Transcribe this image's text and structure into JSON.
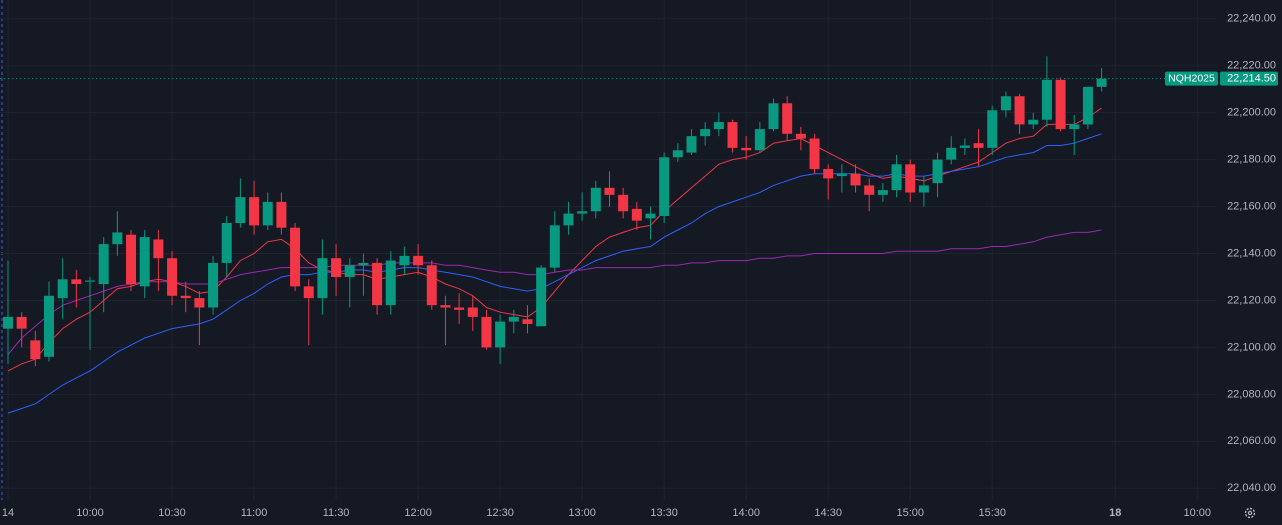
{
  "chart_data": {
    "type": "candlestick",
    "symbol": "NQH2025",
    "last_price": {
      "value": 22214.5,
      "label": "22,214.50"
    },
    "up_color": "#089981",
    "down_color": "#f23645",
    "x": [
      "14",
      null,
      null,
      null,
      null,
      null,
      "10:00",
      null,
      null,
      null,
      null,
      null,
      "10:30",
      null,
      null,
      null,
      null,
      null,
      "11:00",
      null,
      null,
      null,
      null,
      null,
      "11:30",
      null,
      null,
      null,
      null,
      null,
      "12:00",
      null,
      null,
      null,
      null,
      null,
      "12:30",
      null,
      null,
      null,
      null,
      null,
      "13:00",
      null,
      null,
      null,
      null,
      null,
      "13:30",
      null,
      null,
      null,
      null,
      null,
      "14:00",
      null,
      null,
      null,
      null,
      null,
      "14:30",
      null,
      null,
      null,
      null,
      null,
      "15:00",
      null,
      null,
      null,
      null,
      null,
      "15:30",
      null,
      null,
      null,
      null,
      null,
      null,
      null,
      null,
      "18",
      null,
      null,
      null,
      null,
      null,
      "10:00"
    ],
    "open": [
      22108,
      22113,
      22103,
      22096,
      22121,
      22129,
      22128,
      22127,
      22144,
      22148,
      22126,
      22146,
      22138,
      22122,
      22121,
      22117,
      22136,
      22153,
      22164,
      22152,
      22162,
      22151,
      22126,
      22121,
      22138,
      22130,
      22135,
      22136,
      22118,
      22135,
      22139,
      22135,
      22118,
      22117,
      22117,
      22113,
      22100,
      22111,
      22112,
      22109,
      22134,
      22152,
      22157,
      22158,
      22168,
      22165,
      22159,
      22155,
      22156,
      22181,
      22183,
      22190,
      22193,
      22196,
      22185,
      22184,
      22193,
      22204,
      22191,
      22189,
      22176,
      22173,
      22174,
      22169,
      22165,
      22167,
      22178,
      22166,
      22170,
      22180,
      22185,
      22187,
      22185,
      22201,
      22207,
      22195,
      22197,
      22214,
      22193,
      22195,
      22211,
      null,
      null,
      null,
      null,
      null,
      null,
      null
    ],
    "high": [
      22137,
      22115,
      22107,
      22128,
      22138,
      22133,
      22130,
      22147,
      22158,
      22150,
      22150,
      22150,
      22141,
      22128,
      22124,
      22139,
      22156,
      22172,
      22171,
      22166,
      22166,
      22153,
      22129,
      22146,
      22144,
      22138,
      22140,
      22138,
      22141,
      22143,
      22144,
      22137,
      22122,
      22123,
      22122,
      22116,
      22114,
      22116,
      22118,
      22135,
      22158,
      22162,
      22166,
      22171,
      22175,
      22168,
      22162,
      22160,
      22183,
      22187,
      22193,
      22196,
      22200,
      22197,
      22190,
      22196,
      22206,
      22207,
      22194,
      22191,
      22178,
      22178,
      22178,
      22172,
      22170,
      22182,
      22180,
      22173,
      22183,
      22190,
      22189,
      22193,
      22203,
      22209,
      22208,
      22200,
      22224,
      22215,
      22199,
      22211,
      22219,
      null,
      null,
      null,
      null,
      null,
      null,
      null
    ],
    "low": [
      22093,
      22100,
      22092,
      22094,
      22112,
      22117,
      22099,
      22115,
      22139,
      22124,
      22121,
      22124,
      22118,
      22115,
      22101,
      22114,
      22130,
      22151,
      22148,
      22150,
      22148,
      22124,
      22101,
      22114,
      22122,
      22117,
      22122,
      22114,
      22114,
      22131,
      22131,
      22116,
      22101,
      22110,
      22107,
      22099,
      22093,
      22106,
      22106,
      22109,
      22132,
      22148,
      22154,
      22155,
      22160,
      22155,
      22150,
      22146,
      22153,
      22179,
      22182,
      22186,
      22190,
      22183,
      22180,
      22183,
      22192,
      22188,
      22184,
      22174,
      22163,
      22166,
      22166,
      22158,
      22162,
      22164,
      22162,
      22160,
      22164,
      22178,
      22182,
      22177,
      22182,
      22198,
      22191,
      22193,
      22194,
      22192,
      22182,
      22193,
      22209,
      null,
      null,
      null,
      null,
      null,
      null,
      null
    ],
    "close": [
      22113,
      22108,
      22095,
      22122,
      22129,
      22127,
      22128.5,
      22144,
      22149,
      22127,
      22147,
      22138,
      22122,
      22121,
      22117,
      22136,
      22153,
      22164,
      22152,
      22162,
      22151,
      22126,
      22121,
      22138,
      22130,
      22135,
      22136,
      22118,
      22137,
      22139,
      22135,
      22118,
      22117,
      22116,
      22113,
      22100,
      22111,
      22113,
      22110,
      22134,
      22152,
      22157,
      22158,
      22168,
      22165,
      22158,
      22154,
      22157,
      22181,
      22184,
      22190,
      22193,
      22196,
      22185,
      22184,
      22193,
      22204,
      22191,
      22189,
      22176,
      22172,
      22174,
      22169,
      22165,
      22167,
      22178,
      22166,
      22169,
      22180,
      22185,
      22186,
      22185,
      22201,
      22207,
      22195,
      22197,
      22214,
      22193,
      22195,
      22211,
      22214.5,
      null,
      null,
      null,
      null,
      null,
      null,
      null
    ],
    "series": [
      {
        "color": "#f23645",
        "values": [
          22090,
          22093,
          22095,
          22102,
          22108,
          22112,
          22115,
          22120,
          22125,
          22126,
          22128,
          22129,
          22128,
          22126,
          22123,
          22124,
          22130,
          22137,
          22140,
          22145,
          22146,
          22142,
          22136,
          22133,
          22132,
          22131,
          22131,
          22129,
          22130,
          22131,
          22132,
          22130,
          22127,
          22125,
          22122,
          22117,
          22115,
          22114,
          22113,
          22117,
          22124,
          22131,
          22137,
          22143,
          22147,
          22149,
          22151,
          22152,
          22158,
          22163,
          22168,
          22173,
          22178,
          22180,
          22181,
          22183,
          22187,
          22188,
          22189,
          22186,
          22183,
          22180,
          22177,
          22174,
          22172,
          22173,
          22172,
          22171,
          22173,
          22175,
          22177,
          22179,
          22183,
          22187,
          22189,
          22190,
          22195,
          22195,
          22195,
          22198,
          22202,
          null,
          null,
          null,
          null,
          null,
          null,
          null
        ]
      },
      {
        "color": "#2962ff",
        "values": [
          22072,
          22074,
          22076,
          22080,
          22084,
          22087,
          22090,
          22094,
          22098,
          22101,
          22104,
          22106,
          22108,
          22109,
          22110,
          22112,
          22116,
          22120,
          22123,
          22127,
          22130,
          22131,
          22131,
          22132,
          22132,
          22133,
          22133,
          22132,
          22133,
          22134,
          22134,
          22133,
          22132,
          22131,
          22130,
          22128,
          22126,
          22125,
          22124,
          22125,
          22128,
          22131,
          22134,
          22137,
          22139,
          22141,
          22142,
          22143,
          22147,
          22150,
          22153,
          22157,
          22160,
          22162,
          22164,
          22166,
          22169,
          22171,
          22173,
          22174,
          22174,
          22174,
          22174,
          22173,
          22173,
          22174,
          22173,
          22173,
          22174,
          22175,
          22176,
          22177,
          22179,
          22181,
          22182,
          22183,
          22186,
          22186,
          22187,
          22189,
          22191,
          null,
          null,
          null,
          null,
          null,
          null,
          null
        ]
      },
      {
        "color": "#9c27b0",
        "values": [
          22097,
          22104,
          22109,
          22114,
          22118,
          22120,
          22122,
          22124,
          22126,
          22127,
          22128,
          22128,
          22128,
          22127,
          22127,
          22127,
          22129,
          22131,
          22132,
          22133,
          22134,
          22134,
          22134,
          22134,
          22135,
          22135,
          22135,
          22135,
          22136,
          22136,
          22136,
          22136,
          22135,
          22135,
          22134,
          22133,
          22132,
          22132,
          22131,
          22131,
          22132,
          22133,
          22133,
          22134,
          22134,
          22134,
          22134,
          22134,
          22135,
          22135,
          22136,
          22136,
          22137,
          22137,
          22137,
          22138,
          22138,
          22139,
          22139,
          22140,
          22140,
          22140,
          22140,
          22140,
          22140,
          22141,
          22141,
          22141,
          22141,
          22142,
          22142,
          22142,
          22143,
          22143,
          22144,
          22145,
          22147,
          22148,
          22149,
          22149,
          22150,
          null,
          null,
          null,
          null,
          null,
          null,
          null
        ]
      }
    ],
    "ylim": [
      22035,
      22248
    ],
    "yticks": [
      {
        "value": 22040,
        "label": "22,040.00"
      },
      {
        "value": 22060,
        "label": "22,060.00"
      },
      {
        "value": 22080,
        "label": "22,080.00"
      },
      {
        "value": 22100,
        "label": "22,100.00"
      },
      {
        "value": 22120,
        "label": "22,120.00"
      },
      {
        "value": 22140,
        "label": "22,140.00"
      },
      {
        "value": 22160,
        "label": "22,160.00"
      },
      {
        "value": 22180,
        "label": "22,180.00"
      },
      {
        "value": 22200,
        "label": "22,200.00"
      },
      {
        "value": 22220,
        "label": "22,220.00"
      },
      {
        "value": 22240,
        "label": "22,240.00"
      }
    ],
    "grid": true
  }
}
